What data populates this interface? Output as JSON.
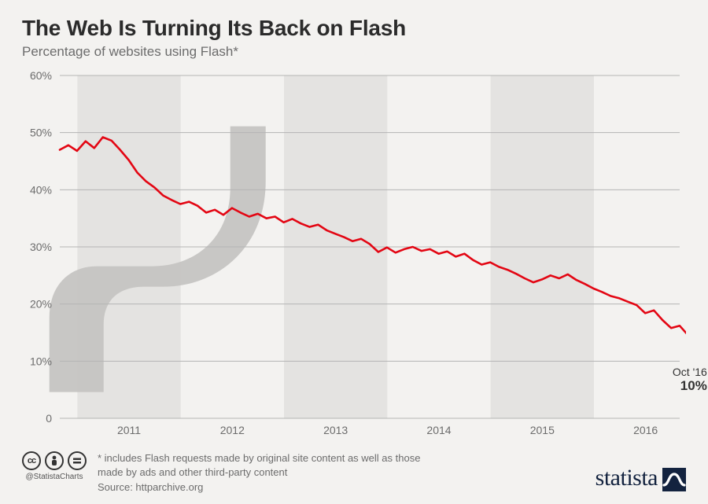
{
  "title": "The Web Is Turning Its Back on Flash",
  "subtitle": "Percentage of websites using Flash*",
  "chart": {
    "type": "line",
    "background_color": "#f3f2f0",
    "band_color": "#e4e3e1",
    "gridline_color": "#b5b5b5",
    "axis_color": "#b5b5b5",
    "text_color": "#6c6c6c",
    "line_color": "#e30613",
    "line_width": 2.6,
    "y": {
      "min": 0,
      "max": 60,
      "ticks": [
        0,
        10,
        20,
        30,
        40,
        50,
        60
      ],
      "suffix": "%",
      "label_fontsize": 14
    },
    "x": {
      "year_labels": [
        "2011",
        "2012",
        "2013",
        "2014",
        "2015",
        "2016"
      ],
      "label_fontsize": 14,
      "min": 2010.83,
      "max": 2016.83
    },
    "shaded_year_bands": [
      2011,
      2013,
      2015
    ],
    "series": [
      47,
      47.8,
      46.8,
      48.5,
      47.3,
      49.2,
      48.6,
      47.0,
      45.2,
      43.0,
      41.5,
      40.4,
      39.0,
      38.2,
      37.5,
      37.9,
      37.2,
      36.0,
      36.5,
      35.6,
      36.8,
      36.0,
      35.3,
      35.8,
      35.0,
      35.3,
      34.3,
      34.9,
      34.1,
      33.5,
      33.9,
      32.9,
      32.3,
      31.7,
      31.0,
      31.4,
      30.5,
      29.1,
      29.9,
      29.0,
      29.6,
      30.0,
      29.3,
      29.6,
      28.8,
      29.2,
      28.3,
      28.8,
      27.7,
      26.9,
      27.3,
      26.5,
      26.0,
      25.3,
      24.5,
      23.8,
      24.3,
      25.0,
      24.5,
      25.2,
      24.2,
      23.5,
      22.7,
      22.1,
      21.4,
      21.0,
      20.4,
      19.8,
      18.4,
      18.9,
      17.2,
      15.8,
      16.2,
      14.5,
      13.0,
      10.0
    ],
    "end_annotation": {
      "label": "Oct '16",
      "value": "10%"
    },
    "flash_logo_color": "#c5c4c2"
  },
  "footnote": "* includes Flash requests made by original site content as well as those made by ads and other third-party content",
  "source": "Source: httparchive.org",
  "cc": {
    "badges": [
      "cc",
      "by",
      "nd"
    ],
    "glyphs": [
      "CC",
      "ⓘ",
      "Ξ"
    ],
    "handle": "@StatistaCharts"
  },
  "brand": "statista"
}
